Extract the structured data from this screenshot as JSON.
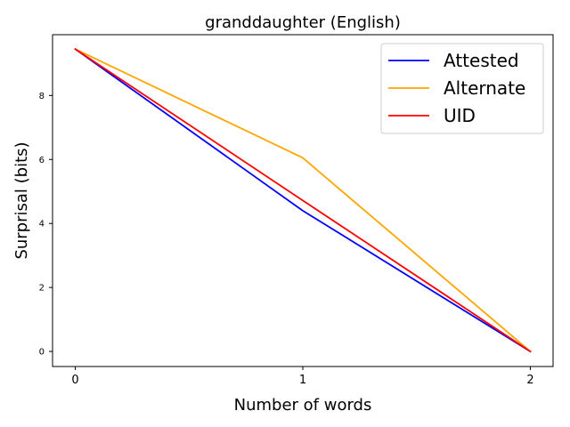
{
  "chart_data": {
    "type": "line",
    "title": "granddaughter (English)",
    "xlabel": "Number of words",
    "ylabel": "Surprisal (bits)",
    "x": [
      0,
      1,
      2
    ],
    "x_ticks": [
      "0",
      "1",
      "2"
    ],
    "y_ticks": [
      "0",
      "2",
      "4",
      "6",
      "8"
    ],
    "xlim": [
      -0.1,
      2.1
    ],
    "ylim": [
      -0.47,
      9.9
    ],
    "grid": false,
    "legend_position": "top-right",
    "series": [
      {
        "name": "Attested",
        "color": "#0000ff",
        "values": [
          9.45,
          4.4,
          0.0
        ]
      },
      {
        "name": "Alternate",
        "color": "#ffa500",
        "values": [
          9.45,
          6.05,
          0.0
        ]
      },
      {
        "name": "UID",
        "color": "#ff0000",
        "values": [
          9.45,
          4.72,
          0.0
        ]
      }
    ]
  }
}
